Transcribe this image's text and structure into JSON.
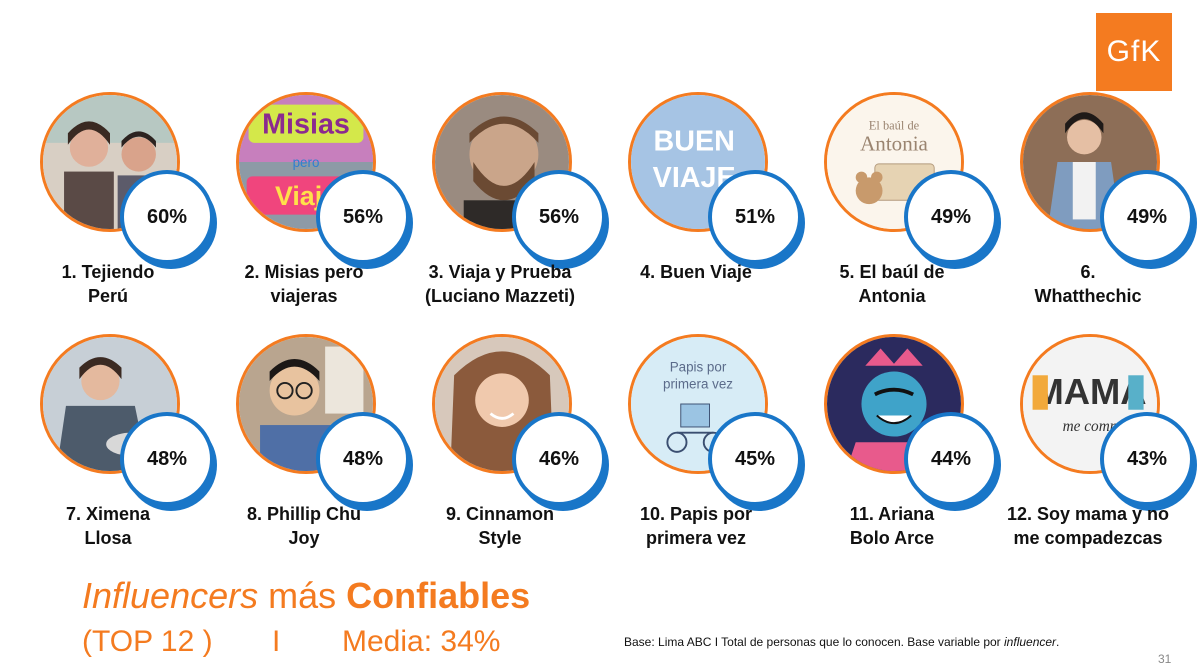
{
  "logo_text": "GfK",
  "influencers": [
    {
      "rank_label": "1. Tejiendo",
      "rank_label2": "Perú",
      "pct": "60%",
      "icon": "photo-two-women"
    },
    {
      "rank_label": "2. Misias pero",
      "rank_label2": "viajeras",
      "pct": "56%",
      "icon": "logo-misias-pero-viajeras"
    },
    {
      "rank_label": "3. Viaja y Prueba",
      "rank_label2": "(Luciano Mazzeti)",
      "pct": "56%",
      "icon": "photo-bearded-man"
    },
    {
      "rank_label": "4. Buen Viaje",
      "rank_label2": "",
      "pct": "51%",
      "icon": "logo-buen-viaje",
      "logo_l1": "BUEN",
      "logo_l2": "VIAJE"
    },
    {
      "rank_label": "5. El baúl de",
      "rank_label2": "Antonia",
      "pct": "49%",
      "icon": "logo-el-baul-de-antonia",
      "logo_l1": "El baúl de",
      "logo_l2": "Antonia"
    },
    {
      "rank_label": "6.",
      "rank_label2": "Whatthechic",
      "pct": "49%",
      "icon": "photo-woman-denim"
    },
    {
      "rank_label": "7. Ximena",
      "rank_label2": "Llosa",
      "pct": "48%",
      "icon": "photo-woman-cooking"
    },
    {
      "rank_label": "8. Phillip Chu",
      "rank_label2": "Joy",
      "pct": "48%",
      "icon": "photo-man-glasses"
    },
    {
      "rank_label": "9. Cinnamon",
      "rank_label2": "Style",
      "pct": "46%",
      "icon": "photo-woman-smiling"
    },
    {
      "rank_label": "10. Papis por",
      "rank_label2": "primera vez",
      "pct": "45%",
      "icon": "logo-papis-por-primera-vez",
      "logo_l1": "Papis por",
      "logo_l2": "primera vez"
    },
    {
      "rank_label": "11. Ariana",
      "rank_label2": "Bolo Arce",
      "pct": "44%",
      "icon": "illustration-woman-crown"
    },
    {
      "rank_label": "12. Soy mama y no",
      "rank_label2": "me compadezcas",
      "pct": "43%",
      "icon": "logo-soy-mama",
      "logo_l1": "MAMA",
      "logo_l2": "me comp"
    }
  ],
  "title": {
    "part1": "Influencers",
    "part2": " más ",
    "part3": "Confiables"
  },
  "subtitle": {
    "top": "(TOP 12 )",
    "sep": "I",
    "media": "Media: 34%"
  },
  "note": {
    "text": "Base: Lima ABC I Total de personas que lo conocen. Base variable por ",
    "italic": "influencer",
    "end": "."
  },
  "page_number": "31",
  "colors": {
    "accent": "#f47b20",
    "badge_border": "#1976c8"
  }
}
